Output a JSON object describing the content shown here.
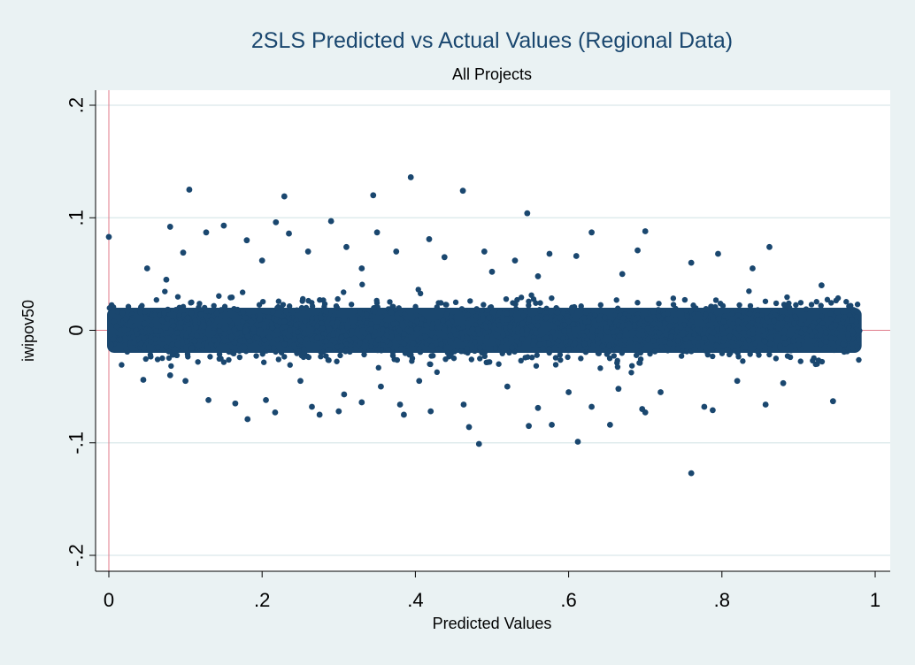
{
  "chart_data": {
    "type": "scatter",
    "title": "2SLS Predicted vs Actual Values (Regional Data)",
    "subtitle": "All Projects",
    "xlabel": "Predicted Values",
    "ylabel": "iwipov50",
    "xlim": [
      0,
      1
    ],
    "ylim": [
      -0.2,
      0.2
    ],
    "x_ticks": [
      0,
      0.2,
      0.4,
      0.6,
      0.8,
      1
    ],
    "x_tick_labels": [
      "0",
      ".2",
      ".4",
      ".6",
      ".8",
      "1"
    ],
    "y_ticks": [
      -0.2,
      -0.1,
      0,
      0.1,
      0.2
    ],
    "y_tick_labels": [
      "-.2",
      "-.1",
      "0",
      ".1",
      ".2"
    ],
    "grid": "horizontal",
    "reference_lines": {
      "x": 0,
      "y": 0,
      "color": "#e07a8a"
    },
    "marker_color": "#1a476f",
    "background_color": "#eaf2f3",
    "dense_band": {
      "x_range": [
        0,
        0.98
      ],
      "y_range": [
        -0.02,
        0.02
      ]
    },
    "points": [
      [
        0.105,
        0.125
      ],
      [
        0.229,
        0.119
      ],
      [
        0.345,
        0.12
      ],
      [
        0.394,
        0.136
      ],
      [
        0.462,
        0.124
      ],
      [
        0.546,
        0.104
      ],
      [
        0.08,
        0.092
      ],
      [
        0.15,
        0.093
      ],
      [
        0.218,
        0.096
      ],
      [
        0.29,
        0.097
      ],
      [
        0.35,
        0.087
      ],
      [
        0.418,
        0.081
      ],
      [
        0.0,
        0.083
      ],
      [
        0.097,
        0.069
      ],
      [
        0.127,
        0.087
      ],
      [
        0.18,
        0.08
      ],
      [
        0.235,
        0.086
      ],
      [
        0.26,
        0.07
      ],
      [
        0.31,
        0.074
      ],
      [
        0.375,
        0.07
      ],
      [
        0.438,
        0.065
      ],
      [
        0.49,
        0.07
      ],
      [
        0.53,
        0.062
      ],
      [
        0.575,
        0.068
      ],
      [
        0.63,
        0.087
      ],
      [
        0.69,
        0.071
      ],
      [
        0.7,
        0.088
      ],
      [
        0.795,
        0.068
      ],
      [
        0.862,
        0.074
      ],
      [
        0.76,
        0.06
      ],
      [
        0.61,
        0.066
      ],
      [
        0.56,
        0.048
      ],
      [
        0.05,
        0.055
      ],
      [
        0.075,
        0.045
      ],
      [
        0.2,
        0.062
      ],
      [
        0.33,
        0.055
      ],
      [
        0.5,
        0.052
      ],
      [
        0.67,
        0.05
      ],
      [
        0.84,
        0.055
      ],
      [
        0.93,
        0.04
      ],
      [
        0.003,
        -0.013
      ],
      [
        0.045,
        -0.044
      ],
      [
        0.13,
        -0.062
      ],
      [
        0.165,
        -0.065
      ],
      [
        0.181,
        -0.079
      ],
      [
        0.205,
        -0.062
      ],
      [
        0.217,
        -0.073
      ],
      [
        0.265,
        -0.068
      ],
      [
        0.275,
        -0.075
      ],
      [
        0.3,
        -0.072
      ],
      [
        0.307,
        -0.057
      ],
      [
        0.33,
        -0.064
      ],
      [
        0.38,
        -0.066
      ],
      [
        0.385,
        -0.075
      ],
      [
        0.42,
        -0.072
      ],
      [
        0.463,
        -0.066
      ],
      [
        0.47,
        -0.086
      ],
      [
        0.483,
        -0.101
      ],
      [
        0.56,
        -0.069
      ],
      [
        0.548,
        -0.085
      ],
      [
        0.578,
        -0.084
      ],
      [
        0.612,
        -0.099
      ],
      [
        0.63,
        -0.068
      ],
      [
        0.654,
        -0.084
      ],
      [
        0.7,
        -0.073
      ],
      [
        0.696,
        -0.07
      ],
      [
        0.76,
        -0.127
      ],
      [
        0.777,
        -0.068
      ],
      [
        0.788,
        -0.071
      ],
      [
        0.857,
        -0.066
      ],
      [
        0.945,
        -0.063
      ],
      [
        0.72,
        -0.055
      ],
      [
        0.52,
        -0.05
      ],
      [
        0.6,
        -0.055
      ],
      [
        0.25,
        -0.045
      ],
      [
        0.1,
        -0.045
      ],
      [
        0.88,
        -0.047
      ],
      [
        0.08,
        -0.04
      ],
      [
        0.355,
        -0.05
      ],
      [
        0.405,
        -0.045
      ],
      [
        0.665,
        -0.052
      ],
      [
        0.82,
        -0.045
      ]
    ]
  }
}
